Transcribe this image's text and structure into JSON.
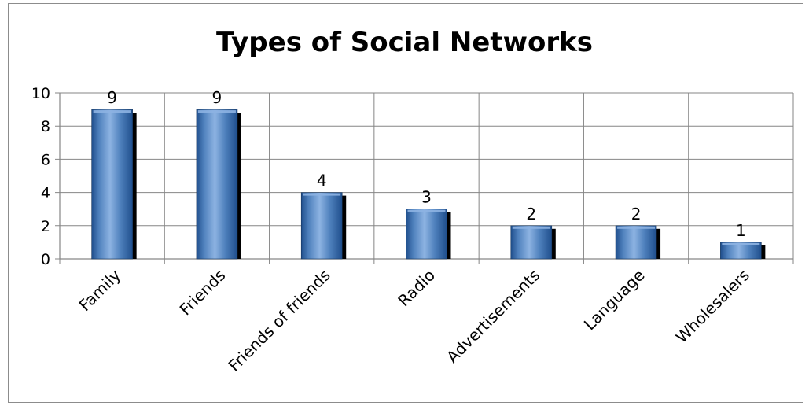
{
  "chart_data": {
    "type": "bar",
    "title": "Types of Social Networks",
    "categories": [
      "Family",
      "Friends",
      "Friends of friends",
      "Radio",
      "Advertisements",
      "Language",
      "Wholesalers"
    ],
    "values": [
      9,
      9,
      4,
      3,
      2,
      2,
      1
    ],
    "ylim": [
      0,
      10
    ],
    "yticks": [
      0,
      2,
      4,
      6,
      8,
      10
    ],
    "grid": true,
    "data_labels": true,
    "legend": "none",
    "colors": {
      "bar": "#4f81bd",
      "bar_light": "#8db3e2",
      "bar_dark": "#1f4e8c",
      "shadow": "#000000",
      "grid": "#868686"
    }
  }
}
